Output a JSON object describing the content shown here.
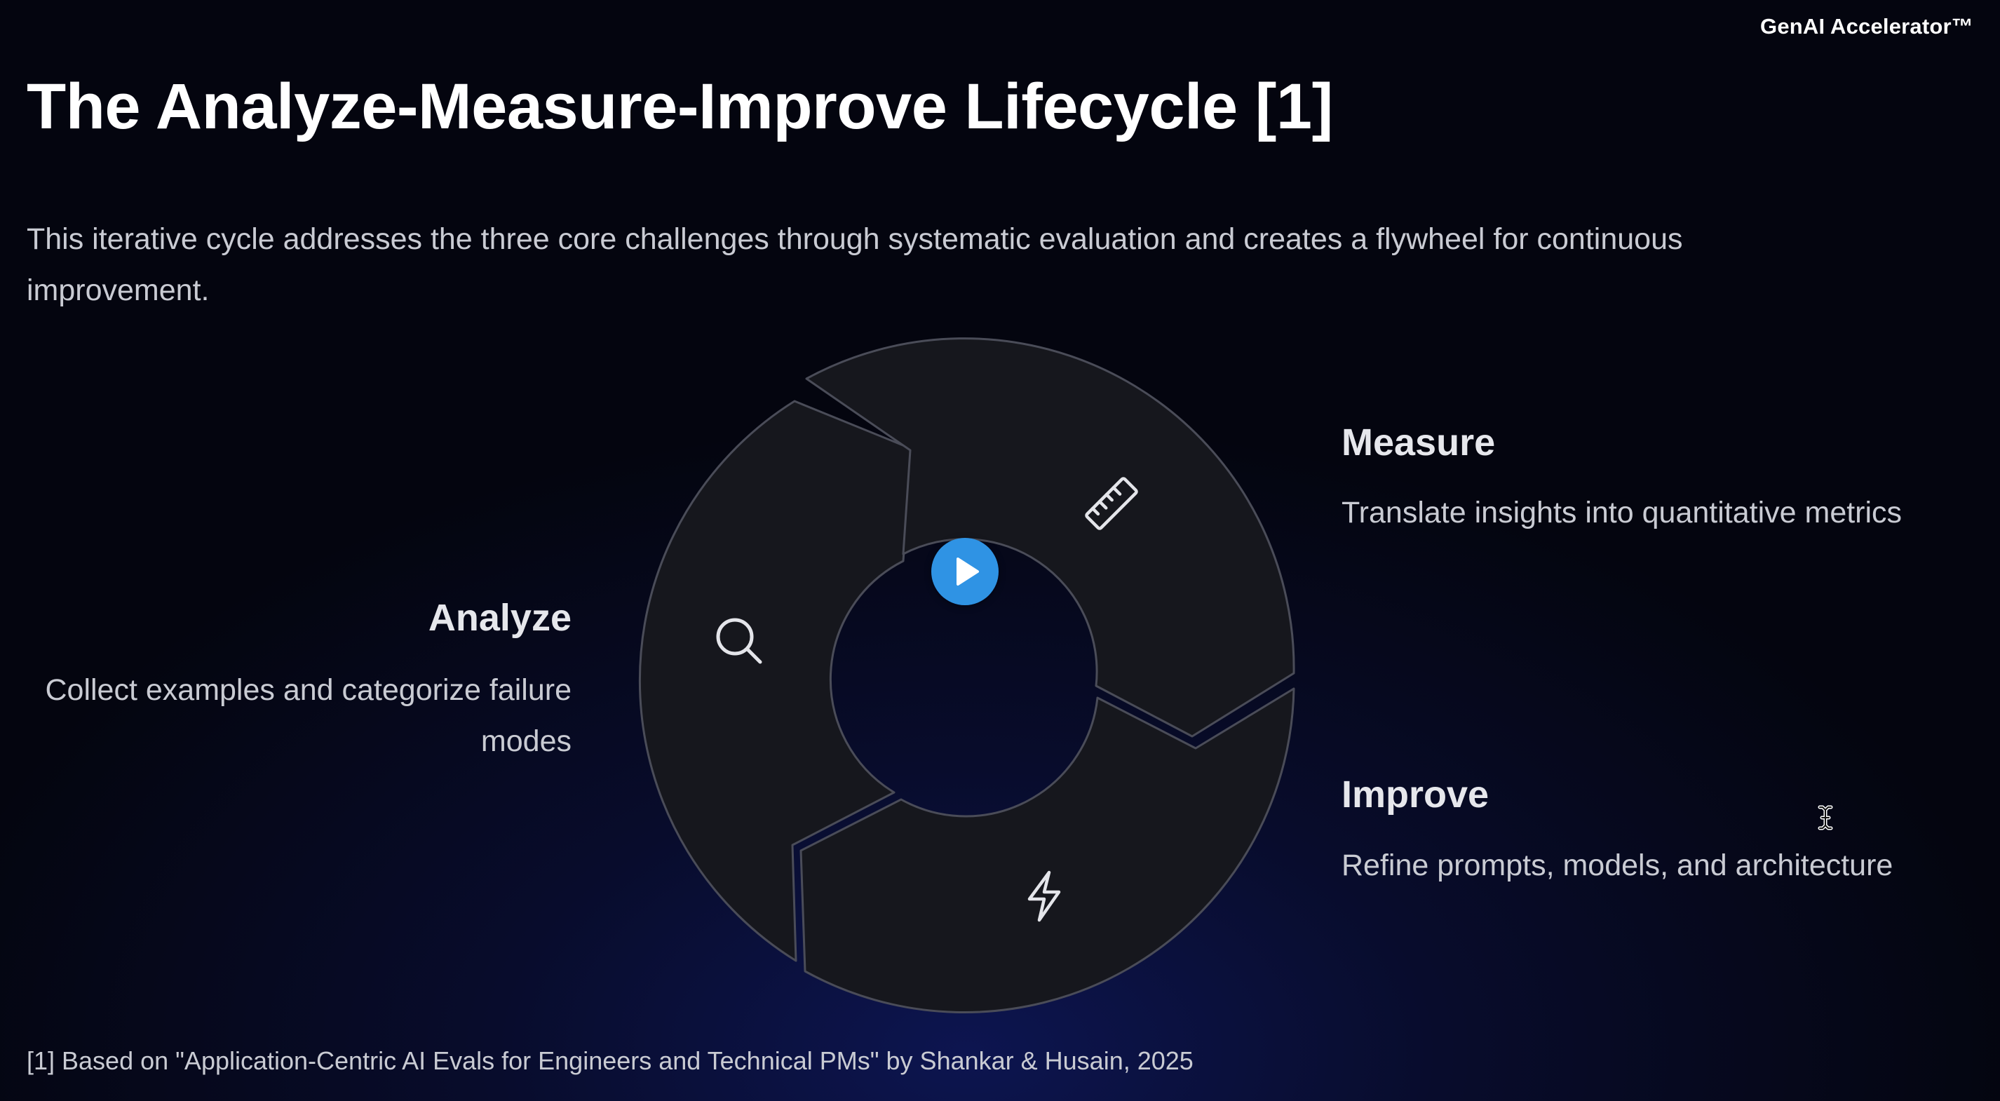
{
  "brand": "GenAI Accelerator™",
  "title": "The Analyze-Measure-Improve Lifecycle [1]",
  "subtitle": "This iterative cycle addresses the three core challenges through systematic evaluation and creates a flywheel for continuous improvement.",
  "stages": {
    "analyze": {
      "heading": "Analyze",
      "description": "Collect examples and categorize failure modes",
      "icon": "search-icon"
    },
    "measure": {
      "heading": "Measure",
      "description": "Translate insights into quantitative metrics",
      "icon": "ruler-icon"
    },
    "improve": {
      "heading": "Improve",
      "description": "Refine prompts, models, and architecture",
      "icon": "lightning-icon"
    }
  },
  "video": {
    "control": "play-icon",
    "accent": "#2f93e4"
  },
  "footnote": "[1] Based on \"Application-Centric AI Evals for Engineers and Technical PMs\" by Shankar & Husain, 2025"
}
